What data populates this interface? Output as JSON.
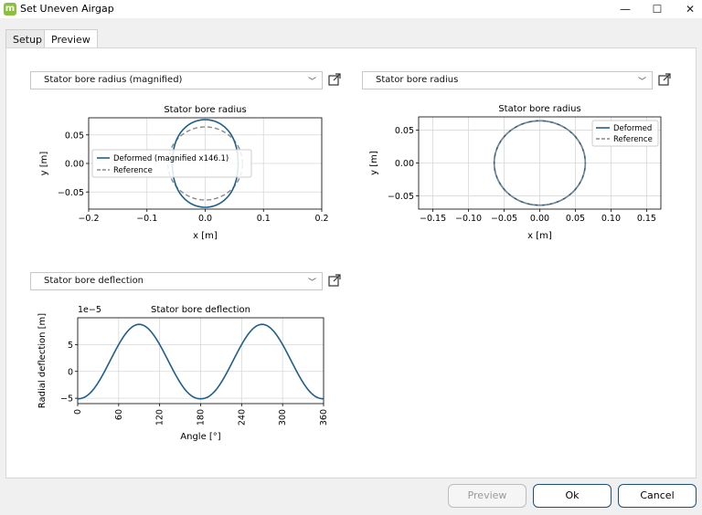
{
  "window": {
    "title": "Set Uneven Airgap",
    "app_icon_letter": "m",
    "minimize_glyph": "—",
    "maximize_glyph": "☐",
    "close_glyph": "✕"
  },
  "tabs": [
    {
      "label": "Setup",
      "active": false
    },
    {
      "label": "Preview",
      "active": true
    }
  ],
  "panels": {
    "top_left_select": "Stator bore radius (magnified)",
    "top_right_select": "Stator bore radius",
    "bottom_left_select": "Stator bore deflection"
  },
  "buttons": {
    "preview": "Preview",
    "ok": "Ok",
    "cancel": "Cancel"
  },
  "colors": {
    "deformed": "#1f5f8b",
    "reference": "#888888",
    "accent_border": "#1d4f7c"
  },
  "chart_data": [
    {
      "type": "line",
      "title": "Stator bore radius",
      "xlabel": "x [m]",
      "ylabel": "y [m]",
      "xlim": [
        -0.2,
        0.2
      ],
      "ylim": [
        -0.08,
        0.08
      ],
      "xticks": [
        "−0.2",
        "−0.1",
        "0.0",
        "0.1",
        "0.2"
      ],
      "yticks": [
        "0.05",
        "0.00",
        "−0.05"
      ],
      "legend": [
        "Deformed (magnified x146.1)",
        "Reference"
      ],
      "legend_position": "center-left",
      "grid": true,
      "reference_radius": 0.064,
      "deflection_amplitude": 8.77e-05,
      "magnification": 146.1
    },
    {
      "type": "line",
      "title": "Stator bore radius",
      "xlabel": "x [m]",
      "ylabel": "y [m]",
      "xlim": [
        -0.17,
        0.17
      ],
      "ylim": [
        -0.07,
        0.07
      ],
      "xticks": [
        "−0.15",
        "−0.10",
        "−0.05",
        "0.00",
        "0.05",
        "0.10",
        "0.15"
      ],
      "yticks": [
        "0.05",
        "0.00",
        "−0.05"
      ],
      "legend": [
        "Deformed",
        "Reference"
      ],
      "legend_position": "top-right",
      "grid": true,
      "reference_radius": 0.064
    },
    {
      "type": "line",
      "title": "Stator bore deflection",
      "xlabel": "Angle [°]",
      "ylabel": "Radial deflection [m]",
      "offset_label": "1e−5",
      "xlim": [
        0,
        360
      ],
      "ylim": [
        -6,
        10
      ],
      "xticks": [
        "0",
        "60",
        "120",
        "180",
        "240",
        "300",
        "360"
      ],
      "yticks": [
        "5",
        "0",
        "−5"
      ],
      "grid": true,
      "series": [
        {
          "x": [
            0,
            30,
            60,
            90,
            120,
            150,
            180,
            210,
            240,
            270,
            300,
            330,
            360
          ],
          "y": [
            -5.1,
            -3.0,
            2.2,
            8.77,
            2.2,
            -3.0,
            -5.1,
            -3.0,
            2.2,
            8.77,
            2.2,
            -3.0,
            -5.1
          ]
        }
      ]
    }
  ]
}
